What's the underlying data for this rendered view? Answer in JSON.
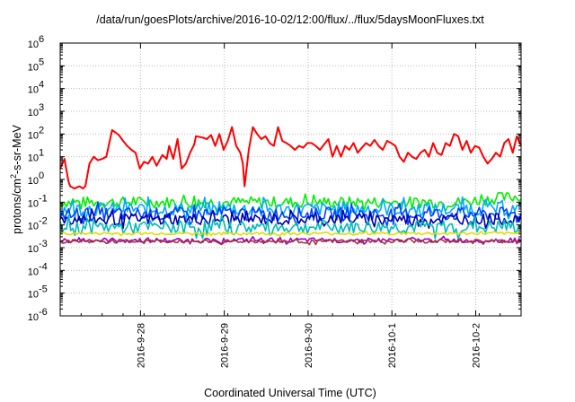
{
  "chart_data": {
    "type": "line",
    "title": "/data/run/goesPlots/archive/2016-10-02/12:00/flux/../flux/5daysMoonFluxes.txt",
    "xlabel": "Coordinated Universal Time (UTC)",
    "ylabel_parts": {
      "base": "protons/cm",
      "sup": "2",
      "rest": "-s-sr-MeV"
    },
    "yscale": "log",
    "ylim_exponents": [
      -6,
      6
    ],
    "yticks": [
      {
        "base": "10",
        "exp": "6"
      },
      {
        "base": "10",
        "exp": "5"
      },
      {
        "base": "10",
        "exp": "4"
      },
      {
        "base": "10",
        "exp": "3"
      },
      {
        "base": "10",
        "exp": "2"
      },
      {
        "base": "10",
        "exp": "1"
      },
      {
        "base": "10",
        "exp": "0"
      },
      {
        "base": "10",
        "exp": "-1"
      },
      {
        "base": "10",
        "exp": "-2"
      },
      {
        "base": "10",
        "exp": "-3"
      },
      {
        "base": "10",
        "exp": "-4"
      },
      {
        "base": "10",
        "exp": "-5"
      },
      {
        "base": "10",
        "exp": "-6"
      }
    ],
    "xlim": [
      "2016-09-27 01:00",
      "2016-10-02 13:00"
    ],
    "xticks": [
      "2016-9-28",
      "2016-9-29",
      "2016-9-30",
      "2016-10-1",
      "2016-10-2"
    ],
    "grid": true,
    "series": [
      {
        "color": "#ff0000",
        "x": [
          0,
          0.05,
          0.1,
          0.12,
          0.17,
          0.23,
          0.27,
          0.3,
          0.35,
          0.4,
          0.45,
          0.5,
          0.55,
          0.62,
          0.7,
          0.75,
          0.8,
          0.85,
          0.9,
          0.95,
          1.0,
          1.05,
          1.1,
          1.15,
          1.22,
          1.27,
          1.3,
          1.35,
          1.4,
          1.45,
          1.5,
          1.55,
          1.6,
          1.62,
          1.7,
          1.75,
          1.8,
          1.85,
          1.9,
          1.95,
          2.0,
          2.05,
          2.1,
          2.15,
          2.18,
          2.2,
          2.25,
          2.3,
          2.35,
          2.4,
          2.45,
          2.5,
          2.55,
          2.6,
          2.65,
          2.7,
          2.75,
          2.8,
          2.85,
          2.9,
          2.95,
          3.0,
          3.05,
          3.1,
          3.15,
          3.2,
          3.25,
          3.3,
          3.35,
          3.4,
          3.45,
          3.5,
          3.55,
          3.6,
          3.65,
          3.7,
          3.75,
          3.8,
          3.85,
          3.9,
          3.95,
          4.0,
          4.05,
          4.1,
          4.15,
          4.2,
          4.25,
          4.3,
          4.35,
          4.4,
          4.45,
          4.5,
          4.55,
          4.6,
          4.65,
          4.7,
          4.75,
          4.8,
          4.85,
          4.9,
          4.95,
          5.0,
          5.05,
          5.1,
          5.15,
          5.2,
          5.25,
          5.3,
          5.35,
          5.4,
          5.45,
          5.5
        ],
        "y": [
          3,
          8,
          0.8,
          0.5,
          0.4,
          0.5,
          0.4,
          0.5,
          5,
          10,
          7,
          8,
          10,
          150,
          90,
          50,
          30,
          20,
          15,
          3,
          6,
          5,
          10,
          4,
          12,
          8,
          30,
          8,
          60,
          3,
          5,
          15,
          35,
          80,
          70,
          60,
          90,
          30,
          100,
          20,
          50,
          200,
          30,
          15,
          5,
          0.5,
          20,
          200,
          100,
          60,
          80,
          40,
          30,
          200,
          50,
          40,
          30,
          20,
          30,
          25,
          40,
          40,
          30,
          20,
          35,
          60,
          10,
          30,
          10,
          30,
          20,
          40,
          15,
          25,
          40,
          30,
          55,
          30,
          20,
          50,
          40,
          30,
          10,
          6,
          15,
          10,
          8,
          15,
          20,
          10,
          40,
          15,
          12,
          40,
          30,
          100,
          80,
          20,
          50,
          15,
          30,
          25,
          10,
          5,
          8,
          15,
          10,
          40,
          60,
          15,
          80,
          30
        ]
      },
      {
        "color": "#00ee00",
        "base": 0.1,
        "amplitude": 0.25,
        "end_base": 0.18
      },
      {
        "color": "#00aaff",
        "base": 0.05,
        "amplitude": 0.3
      },
      {
        "color": "#0044ff",
        "base": 0.03,
        "amplitude": 0.3
      },
      {
        "color": "#0000aa",
        "base": 0.018,
        "amplitude": 0.25
      },
      {
        "color": "#00bbbb",
        "base": 0.008,
        "amplitude": 0.3
      },
      {
        "color": "#dddd00",
        "base": 0.0042,
        "amplitude": 0.06
      },
      {
        "color": "#9900cc",
        "base": 0.0021,
        "amplitude": 0.1
      },
      {
        "color": "#aa3333",
        "base": 0.0019,
        "amplitude": 0.08
      }
    ]
  }
}
